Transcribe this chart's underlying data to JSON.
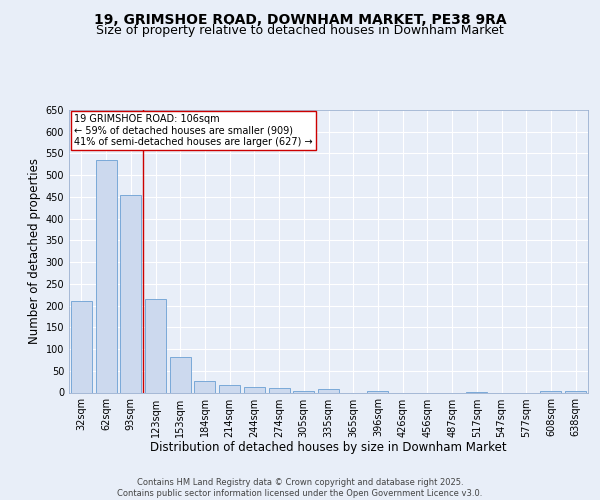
{
  "title1": "19, GRIMSHOE ROAD, DOWNHAM MARKET, PE38 9RA",
  "title2": "Size of property relative to detached houses in Downham Market",
  "xlabel": "Distribution of detached houses by size in Downham Market",
  "ylabel": "Number of detached properties",
  "categories": [
    "32sqm",
    "62sqm",
    "93sqm",
    "123sqm",
    "153sqm",
    "184sqm",
    "214sqm",
    "244sqm",
    "274sqm",
    "305sqm",
    "335sqm",
    "365sqm",
    "396sqm",
    "426sqm",
    "456sqm",
    "487sqm",
    "517sqm",
    "547sqm",
    "577sqm",
    "608sqm",
    "638sqm"
  ],
  "values": [
    210,
    535,
    455,
    215,
    82,
    27,
    17,
    13,
    10,
    4,
    7,
    0,
    4,
    0,
    0,
    0,
    2,
    0,
    0,
    4,
    4
  ],
  "bar_color": "#ccd9ee",
  "bar_edge_color": "#6b9fd4",
  "bar_width": 0.85,
  "vline_x": 2.5,
  "vline_color": "#cc0000",
  "annotation_line1": "19 GRIMSHOE ROAD: 106sqm",
  "annotation_line2": "← 59% of detached houses are smaller (909)",
  "annotation_line3": "41% of semi-detached houses are larger (627) →",
  "ylim": [
    0,
    650
  ],
  "yticks": [
    0,
    50,
    100,
    150,
    200,
    250,
    300,
    350,
    400,
    450,
    500,
    550,
    600,
    650
  ],
  "bg_color": "#e8eef8",
  "plot_bg_color": "#e8eef8",
  "footer_text": "Contains HM Land Registry data © Crown copyright and database right 2025.\nContains public sector information licensed under the Open Government Licence v3.0.",
  "title_fontsize": 10,
  "subtitle_fontsize": 9,
  "axis_label_fontsize": 8.5,
  "tick_fontsize": 7,
  "annotation_fontsize": 7,
  "footer_fontsize": 6
}
